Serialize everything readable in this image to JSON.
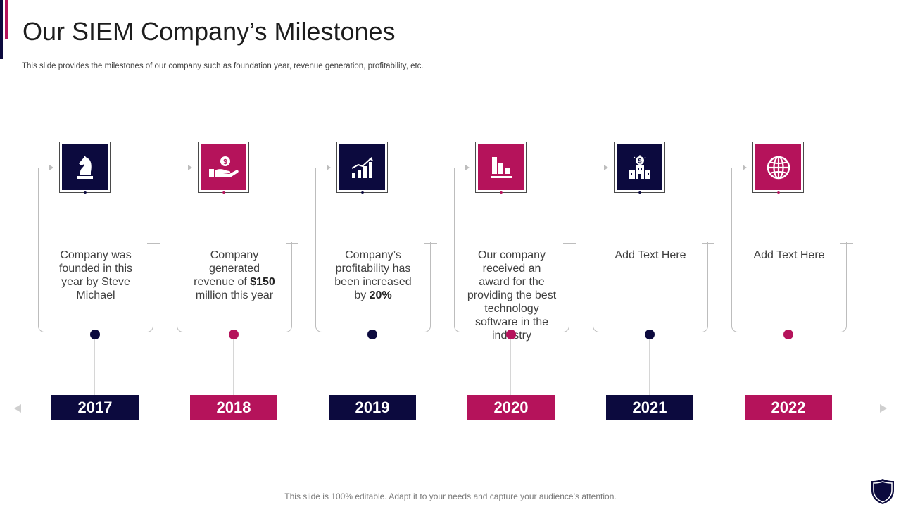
{
  "title": "Our SIEM Company’s Milestones",
  "subtitle": "This slide provides the milestones of our company such as foundation year, revenue generation, profitability, etc.",
  "milestones": [
    {
      "year": "2017",
      "color": "navy",
      "icon": "chess-knight-icon",
      "text_before": "Company was founded in this year by Steve Michael",
      "text_bold": "",
      "text_after": ""
    },
    {
      "year": "2018",
      "color": "pink",
      "icon": "hand-coin-icon",
      "text_before": "Company generated revenue of ",
      "text_bold": "$150",
      "text_after": " million this year"
    },
    {
      "year": "2019",
      "color": "navy",
      "icon": "growth-chart-icon",
      "text_before": "Company’s profitability has been increased by ",
      "text_bold": "20%",
      "text_after": ""
    },
    {
      "year": "2020",
      "color": "pink",
      "icon": "bar-chart-icon",
      "text_before": "Our company received an award for the providing the best technology software in the industry",
      "text_bold": "",
      "text_after": ""
    },
    {
      "year": "2021",
      "color": "navy",
      "icon": "bank-building-icon",
      "text_before": "Add Text Here",
      "text_bold": "",
      "text_after": ""
    },
    {
      "year": "2022",
      "color": "pink",
      "icon": "globe-icon",
      "text_before": "Add Text Here",
      "text_bold": "",
      "text_after": ""
    }
  ],
  "colors": {
    "navy": "#0c0a3e",
    "pink": "#b5135b",
    "line": "#bdbdbd"
  },
  "footer": "This slide is 100% editable. Adapt it to your needs and capture your audience’s attention."
}
